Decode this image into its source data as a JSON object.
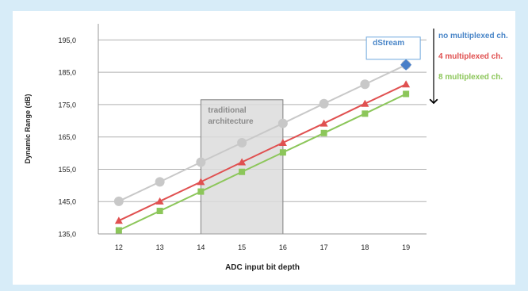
{
  "chart_data": {
    "type": "line",
    "xlabel": "ADC input bit depth",
    "ylabel": "Dynamic Range (dB)",
    "x": [
      12,
      13,
      14,
      15,
      16,
      17,
      18,
      19
    ],
    "x_tick_labels": [
      "12",
      "13",
      "14",
      "15",
      "16",
      "17",
      "18",
      "19"
    ],
    "ylim": [
      135,
      200
    ],
    "y_ticks": [
      135,
      145,
      155,
      165,
      175,
      185,
      195
    ],
    "y_tick_labels": [
      "135,0",
      "145,0",
      "155,0",
      "165,0",
      "175,0",
      "185,0",
      "195,0"
    ],
    "grid": true,
    "series": [
      {
        "name": "no multiplexed ch.",
        "marker": "circle",
        "color": "#c8c8c8",
        "label_color": "#4a86c8",
        "values": [
          145.1,
          151.1,
          157.2,
          163.2,
          169.2,
          175.3,
          181.3,
          187.3
        ]
      },
      {
        "name": "4 multiplexed ch.",
        "marker": "triangle",
        "color": "#e05050",
        "label_color": "#e05050",
        "values": [
          139.1,
          145.1,
          151.1,
          157.2,
          163.2,
          169.2,
          175.3,
          181.3
        ]
      },
      {
        "name": "8 multiplexed ch.",
        "marker": "square",
        "color": "#8cc65a",
        "label_color": "#8cc65a",
        "values": [
          136.1,
          142.1,
          148.1,
          154.2,
          160.2,
          166.2,
          172.2,
          178.3
        ]
      }
    ],
    "highlight": {
      "label_line1": "traditional",
      "label_line2": "architecture",
      "x_from": 14,
      "x_to": 16,
      "y_from": 135,
      "y_to": 176.5
    },
    "callout": {
      "label": "dStream",
      "x": 19,
      "y": 187.3,
      "marker_color": "#4a7fc8"
    },
    "legend_placement": "right"
  }
}
